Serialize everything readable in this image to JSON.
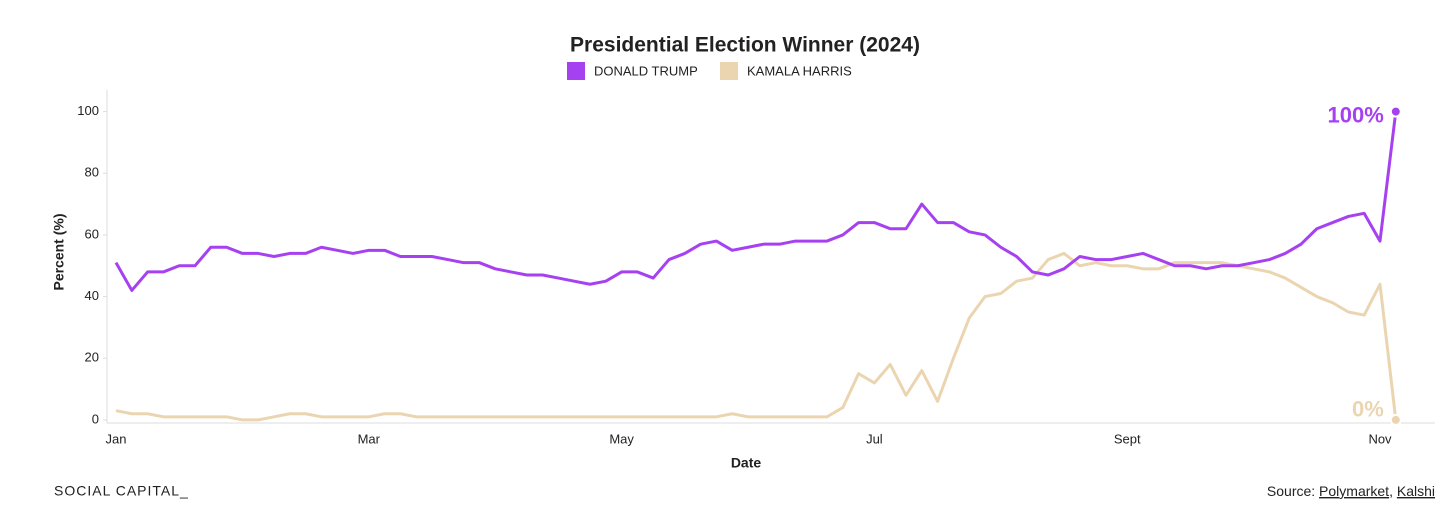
{
  "chart_data": {
    "type": "line",
    "title": "Presidential Election Winner (2024)",
    "xlabel": "Date",
    "ylabel": "Percent (%)",
    "categories": [
      "Jan",
      null,
      null,
      null,
      null,
      null,
      null,
      null,
      null,
      null,
      null,
      null,
      null,
      null,
      null,
      null,
      "Mar",
      null,
      null,
      null,
      null,
      null,
      null,
      null,
      null,
      null,
      null,
      null,
      null,
      null,
      null,
      null,
      "May",
      null,
      null,
      null,
      null,
      null,
      null,
      null,
      null,
      null,
      null,
      null,
      null,
      null,
      null,
      null,
      "Jul",
      null,
      null,
      null,
      null,
      null,
      null,
      null,
      null,
      null,
      null,
      null,
      null,
      null,
      null,
      null,
      "Sept",
      null,
      null,
      null,
      null,
      null,
      null,
      null,
      null,
      null,
      null,
      null,
      null,
      null,
      null,
      null,
      "Nov",
      null
    ],
    "series": [
      {
        "name": "DONALD TRUMP",
        "color": "#a641f2",
        "end_label": "100%",
        "values": [
          51,
          42,
          48,
          48,
          50,
          50,
          56,
          56,
          54,
          54,
          53,
          54,
          54,
          56,
          55,
          54,
          55,
          55,
          53,
          53,
          53,
          52,
          51,
          51,
          49,
          48,
          47,
          47,
          46,
          45,
          44,
          45,
          48,
          48,
          46,
          52,
          54,
          57,
          58,
          55,
          56,
          57,
          57,
          58,
          58,
          58,
          60,
          64,
          64,
          62,
          62,
          70,
          64,
          64,
          61,
          60,
          56,
          53,
          48,
          47,
          49,
          53,
          52,
          52,
          53,
          54,
          52,
          50,
          50,
          49,
          50,
          50,
          51,
          52,
          54,
          57,
          62,
          64,
          66,
          67,
          58,
          100
        ]
      },
      {
        "name": "KAMALA HARRIS",
        "color": "#ebd5b0",
        "end_label": "0%",
        "values": [
          3,
          2,
          2,
          1,
          1,
          1,
          1,
          1,
          0,
          0,
          1,
          2,
          2,
          1,
          1,
          1,
          1,
          2,
          2,
          1,
          1,
          1,
          1,
          1,
          1,
          1,
          1,
          1,
          1,
          1,
          1,
          1,
          1,
          1,
          1,
          1,
          1,
          1,
          1,
          2,
          1,
          1,
          1,
          1,
          1,
          1,
          4,
          15,
          12,
          18,
          8,
          16,
          6,
          20,
          33,
          40,
          41,
          45,
          46,
          52,
          54,
          50,
          51,
          50,
          50,
          49,
          49,
          51,
          51,
          51,
          51,
          50,
          49,
          48,
          46,
          43,
          40,
          38,
          35,
          34,
          44,
          0
        ]
      }
    ],
    "ylim": [
      -1,
      107
    ],
    "yticks": [
      0,
      20,
      40,
      60,
      80,
      100
    ],
    "grid": false,
    "footer": "SOCIAL CAPITAL_",
    "source_prefix": "Source:",
    "sources": [
      "Polymarket",
      "Kalshi"
    ],
    "source_separator": ","
  }
}
